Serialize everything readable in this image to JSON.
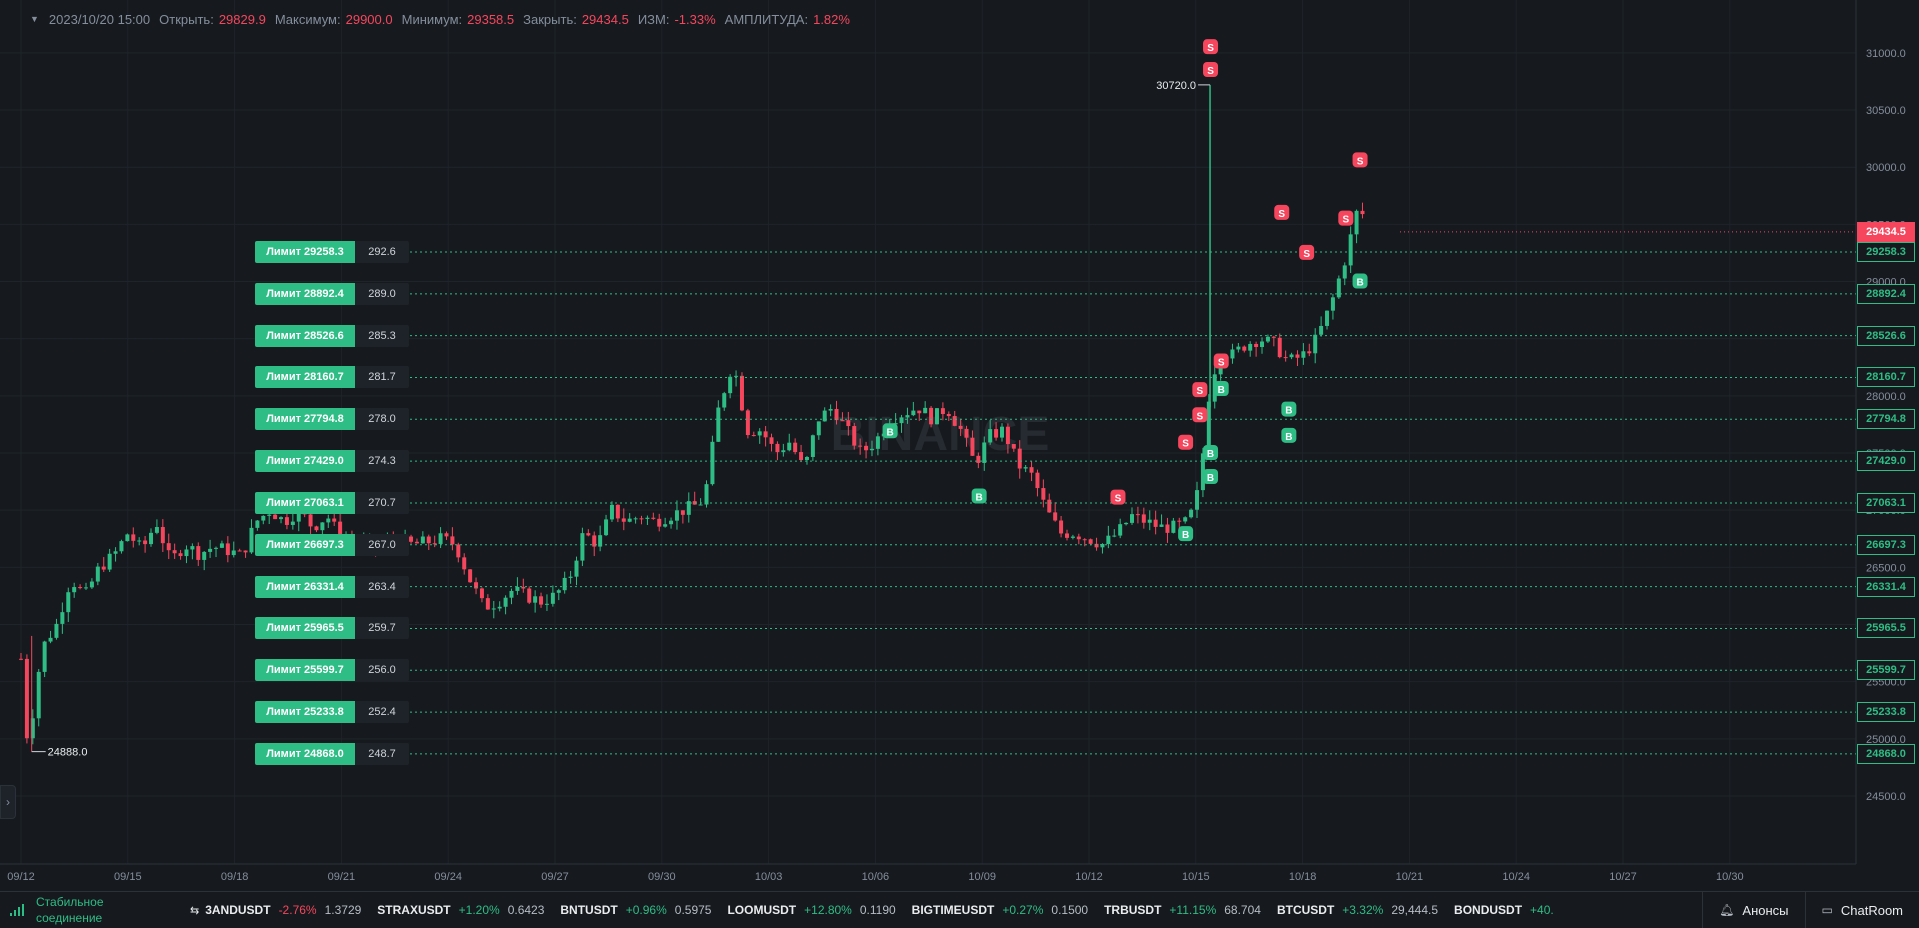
{
  "header": {
    "datetime": "2023/10/20 15:00",
    "open_label": "Открыть:",
    "open_value": "29829.9",
    "high_label": "Максимум:",
    "high_value": "29900.0",
    "low_label": "Минимум:",
    "low_value": "29358.5",
    "close_label": "Закрыть:",
    "close_value": "29434.5",
    "change_label": "ИЗМ:",
    "change_value": "-1.33%",
    "amplitude_label": "АМПЛИТУДА:",
    "amplitude_value": "1.82%"
  },
  "watermark": "BINANCE",
  "colors": {
    "up": "#2ebd85",
    "down": "#f6465d",
    "grid": "#1f242a",
    "text": "#848e9c"
  },
  "chart_data": {
    "type": "candlestick",
    "y_ticks": [
      "31000.0",
      "30500.0",
      "30000.0",
      "29500.0",
      "29000.0",
      "28500.0",
      "28000.0",
      "27500.0",
      "27000.0",
      "26500.0",
      "26000.0",
      "25500.0",
      "25000.0",
      "24500.0"
    ],
    "y_range": [
      24150,
      31200
    ],
    "x_ticks": [
      "09/12",
      "09/15",
      "09/18",
      "09/21",
      "09/24",
      "09/27",
      "09/30",
      "10/03",
      "10/06",
      "10/09",
      "10/12",
      "10/15",
      "10/18",
      "10/21",
      "10/24",
      "10/27",
      "10/30"
    ],
    "high_marker": "30720.0",
    "low_marker": "24888.0",
    "current_price": "29434.5",
    "limit_orders": [
      {
        "label": "Лимит 29258.3",
        "amount": "292.6",
        "price": "29258.3",
        "value": 29258.3
      },
      {
        "label": "Лимит 28892.4",
        "amount": "289.0",
        "price": "28892.4",
        "value": 28892.4
      },
      {
        "label": "Лимит 28526.6",
        "amount": "285.3",
        "price": "28526.6",
        "value": 28526.6
      },
      {
        "label": "Лимит 28160.7",
        "amount": "281.7",
        "price": "28160.7",
        "value": 28160.7
      },
      {
        "label": "Лимит 27794.8",
        "amount": "278.0",
        "price": "27794.8",
        "value": 27794.8
      },
      {
        "label": "Лимит 27429.0",
        "amount": "274.3",
        "price": "27429.0",
        "value": 27429.0
      },
      {
        "label": "Лимит 27063.1",
        "amount": "270.7",
        "price": "27063.1",
        "value": 27063.1
      },
      {
        "label": "Лимит 26697.3",
        "amount": "267.0",
        "price": "26697.3",
        "value": 26697.3
      },
      {
        "label": "Лимит 26331.4",
        "amount": "263.4",
        "price": "26331.4",
        "value": 26331.4
      },
      {
        "label": "Лимит 25965.5",
        "amount": "259.7",
        "price": "25965.5",
        "value": 25965.5
      },
      {
        "label": "Лимит 25599.7",
        "amount": "256.0",
        "price": "25599.7",
        "value": 25599.7
      },
      {
        "label": "Лимит 25233.8",
        "amount": "252.4",
        "price": "25233.8",
        "value": 25233.8
      },
      {
        "label": "Лимит 24868.0",
        "amount": "248.7",
        "price": "24868.0",
        "value": 24868.0
      }
    ],
    "trade_markers": [
      {
        "side": "S",
        "day": 33.4,
        "price": 31050
      },
      {
        "side": "S",
        "day": 33.4,
        "price": 30850
      },
      {
        "side": "S",
        "day": 35.4,
        "price": 29600
      },
      {
        "side": "S",
        "day": 37.2,
        "price": 29550
      },
      {
        "side": "S",
        "day": 37.6,
        "price": 30060
      },
      {
        "side": "S",
        "day": 36.1,
        "price": 29250
      },
      {
        "side": "S",
        "day": 33.7,
        "price": 28300
      },
      {
        "side": "S",
        "day": 33.1,
        "price": 28050
      },
      {
        "side": "S",
        "day": 33.1,
        "price": 27830
      },
      {
        "side": "S",
        "day": 32.7,
        "price": 27590
      },
      {
        "side": "S",
        "day": 30.8,
        "price": 27110
      },
      {
        "side": "B",
        "day": 24.4,
        "price": 27690
      },
      {
        "side": "B",
        "day": 26.9,
        "price": 27120
      },
      {
        "side": "B",
        "day": 33.7,
        "price": 28060
      },
      {
        "side": "B",
        "day": 35.6,
        "price": 27880
      },
      {
        "side": "B",
        "day": 35.6,
        "price": 27650
      },
      {
        "side": "B",
        "day": 33.4,
        "price": 27500
      },
      {
        "side": "B",
        "day": 33.4,
        "price": 27290
      },
      {
        "side": "B",
        "day": 32.7,
        "price": 26790
      },
      {
        "side": "B",
        "day": 37.6,
        "price": 29000
      }
    ],
    "price_path": [
      [
        0.0,
        25700
      ],
      [
        0.2,
        24900
      ],
      [
        0.4,
        25400
      ],
      [
        0.6,
        25800
      ],
      [
        1.0,
        26000
      ],
      [
        1.4,
        26400
      ],
      [
        1.8,
        26250
      ],
      [
        2.2,
        26500
      ],
      [
        2.6,
        26600
      ],
      [
        3.0,
        26800
      ],
      [
        3.4,
        26650
      ],
      [
        3.8,
        26900
      ],
      [
        4.2,
        26550
      ],
      [
        4.6,
        26700
      ],
      [
        5.0,
        26620
      ],
      [
        5.4,
        26680
      ],
      [
        5.8,
        26650
      ],
      [
        6.2,
        26600
      ],
      [
        6.6,
        26900
      ],
      [
        7.0,
        27000
      ],
      [
        7.4,
        26900
      ],
      [
        7.8,
        27000
      ],
      [
        8.2,
        26850
      ],
      [
        8.6,
        26950
      ],
      [
        9.0,
        26750
      ],
      [
        9.4,
        26700
      ],
      [
        9.8,
        26680
      ],
      [
        10.2,
        26700
      ],
      [
        10.6,
        26720
      ],
      [
        11.0,
        26700
      ],
      [
        11.4,
        26720
      ],
      [
        11.8,
        26750
      ],
      [
        12.2,
        26700
      ],
      [
        12.6,
        26400
      ],
      [
        13.0,
        26150
      ],
      [
        13.4,
        26200
      ],
      [
        13.8,
        26300
      ],
      [
        14.2,
        26250
      ],
      [
        14.6,
        26200
      ],
      [
        15.0,
        26250
      ],
      [
        15.4,
        26400
      ],
      [
        15.8,
        26800
      ],
      [
        16.2,
        26700
      ],
      [
        16.6,
        27000
      ],
      [
        17.0,
        26900
      ],
      [
        17.4,
        26950
      ],
      [
        17.8,
        26900
      ],
      [
        18.2,
        26950
      ],
      [
        18.6,
        27000
      ],
      [
        19.0,
        27050
      ],
      [
        19.2,
        27100
      ],
      [
        19.6,
        27900
      ],
      [
        20.0,
        28300
      ],
      [
        20.4,
        27700
      ],
      [
        20.8,
        27700
      ],
      [
        21.2,
        27500
      ],
      [
        21.6,
        27600
      ],
      [
        22.0,
        27350
      ],
      [
        22.4,
        27800
      ],
      [
        22.8,
        27900
      ],
      [
        23.2,
        27700
      ],
      [
        23.6,
        27500
      ],
      [
        24.0,
        27600
      ],
      [
        24.4,
        27800
      ],
      [
        24.8,
        27850
      ],
      [
        25.2,
        27900
      ],
      [
        25.6,
        27800
      ],
      [
        26.0,
        27900
      ],
      [
        26.4,
        27700
      ],
      [
        26.8,
        27400
      ],
      [
        27.2,
        27650
      ],
      [
        27.6,
        27700
      ],
      [
        28.0,
        27400
      ],
      [
        28.4,
        27300
      ],
      [
        28.8,
        27000
      ],
      [
        29.2,
        26800
      ],
      [
        29.6,
        26800
      ],
      [
        30.0,
        26750
      ],
      [
        30.4,
        26700
      ],
      [
        30.8,
        26800
      ],
      [
        31.2,
        26950
      ],
      [
        31.6,
        26900
      ],
      [
        32.0,
        26850
      ],
      [
        32.4,
        26850
      ],
      [
        32.8,
        26900
      ],
      [
        33.1,
        27200
      ],
      [
        33.4,
        28100
      ],
      [
        33.7,
        28400
      ],
      [
        34.0,
        28350
      ],
      [
        34.4,
        28450
      ],
      [
        34.8,
        28500
      ],
      [
        35.2,
        28450
      ],
      [
        35.6,
        28300
      ],
      [
        36.0,
        28350
      ],
      [
        36.4,
        28500
      ],
      [
        36.8,
        28800
      ],
      [
        37.2,
        29200
      ],
      [
        37.6,
        29700
      ],
      [
        37.8,
        29430
      ]
    ]
  },
  "bottom_bar": {
    "connection": "Стабильное соединение",
    "tickers": [
      {
        "symbol": "3ANDUSDT",
        "change": "-2.76%",
        "price": "1.3729",
        "dir": "down"
      },
      {
        "symbol": "STRAXUSDT",
        "change": "+1.20%",
        "price": "0.6423",
        "dir": "up"
      },
      {
        "symbol": "BNTUSDT",
        "change": "+0.96%",
        "price": "0.5975",
        "dir": "up"
      },
      {
        "symbol": "LOOMUSDT",
        "change": "+12.80%",
        "price": "0.1190",
        "dir": "up"
      },
      {
        "symbol": "BIGTIMEUSDT",
        "change": "+0.27%",
        "price": "0.1500",
        "dir": "up"
      },
      {
        "symbol": "TRBUSDT",
        "change": "+11.15%",
        "price": "68.704",
        "dir": "up"
      },
      {
        "symbol": "BTCUSDT",
        "change": "+3.32%",
        "price": "29,444.5",
        "dir": "up"
      },
      {
        "symbol": "BONDUSDT",
        "change": "+40.",
        "price": "",
        "dir": "up"
      }
    ],
    "announcements": "Анонсы",
    "chatroom": "ChatRoom"
  }
}
